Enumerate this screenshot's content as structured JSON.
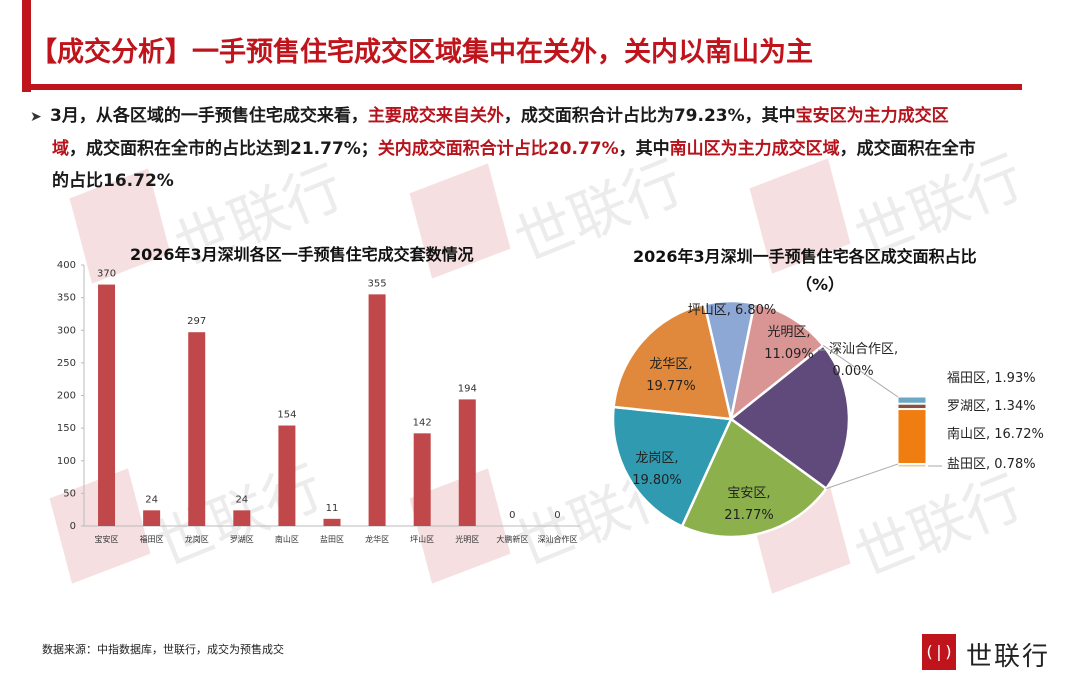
{
  "header": {
    "title": "【成交分析】一手预售住宅成交区域集中在关外，关内以南山为主",
    "accent_color": "#c0141c"
  },
  "summary": {
    "bullet_icon": "arrow-right-icon",
    "segments": [
      {
        "text": "3月，从各区域的一手预售住宅成交来看，",
        "highlight": false
      },
      {
        "text": "主要成交来自关外",
        "highlight": true
      },
      {
        "text": "，成交面积合计占比为79.23%，其中",
        "highlight": false
      },
      {
        "text": "宝安区为主力成交区域",
        "highlight": true
      },
      {
        "text": "，成交面积在全市的占比达到21.77%；",
        "highlight": false
      },
      {
        "text": "关内成交面积合计占比20.77%",
        "highlight": true
      },
      {
        "text": "，其中",
        "highlight": false
      },
      {
        "text": "南山区为主力成交区域",
        "highlight": true
      },
      {
        "text": "，成交面积在全市的占比16.72%",
        "highlight": false
      }
    ],
    "line1_a": "3月，从各区域的一手预售住宅成交来看，",
    "line1_b": "主要成交来自关外",
    "line1_c": "，成交面积合计占比为79.23%，其中",
    "line1_d": "宝安区为主力成交区",
    "line2_a": "域",
    "line2_b": "，成交面积在全市的占比达到21.77%；",
    "line2_c": "关内成交面积合计占比20.77%",
    "line2_d": "，其中",
    "line2_e": "南山区为主力成交区域",
    "line2_f": "，成交面积在全市",
    "line3_a": "的占比16.72%"
  },
  "watermark": {
    "text": "世联行"
  },
  "chart_data": [
    {
      "type": "bar",
      "title": "2026年3月深圳各区一手预售住宅成交套数情况",
      "categories": [
        "宝安区",
        "福田区",
        "龙岗区",
        "罗湖区",
        "南山区",
        "盐田区",
        "龙华区",
        "坪山区",
        "光明区",
        "大鹏新区",
        "深汕合作区"
      ],
      "values": [
        370,
        24,
        297,
        24,
        154,
        11,
        355,
        142,
        194,
        0,
        0
      ],
      "xlabel": "",
      "ylabel": "",
      "ylim": [
        0,
        400
      ],
      "yticks": [
        0,
        50,
        100,
        150,
        200,
        250,
        300,
        350,
        400
      ],
      "grid": false,
      "legend": null,
      "bar_color": "#c0474a",
      "data_labels": true
    },
    {
      "type": "pie",
      "title": "2026年3月深圳一手预售住宅各区成交面积占比（%）",
      "title_line1": "2026年3月深圳一手预售住宅各区成交面积占比",
      "title_line2": "（%）",
      "slices": [
        {
          "label": "坪山区",
          "value": 6.8,
          "display": "坪山区, 6.80%",
          "color": "#8ea8d6"
        },
        {
          "label": "光明区",
          "value": 11.09,
          "display_l1": "光明区,",
          "display_l2": "11.09%",
          "color": "#d99594"
        },
        {
          "label": "深汕合作区",
          "value": 0.0,
          "display_l1": "深汕合作区,",
          "display_l2": "0.00%",
          "color": "#f0a050"
        },
        {
          "label": "关内(福田/罗湖/南山/盐田)",
          "value": 20.77,
          "color": "#604a7b"
        },
        {
          "label": "宝安区",
          "value": 21.77,
          "display_l1": "宝安区,",
          "display_l2": "21.77%",
          "color": "#8bb04c"
        },
        {
          "label": "龙岗区",
          "value": 19.8,
          "display_l1": "龙岗区,",
          "display_l2": "19.80%",
          "color": "#2f9ab0"
        },
        {
          "label": "龙华区",
          "value": 19.77,
          "display_l1": "龙华区,",
          "display_l2": "19.77%",
          "color": "#e0893c"
        }
      ],
      "breakout": {
        "type": "stacked-bar",
        "items": [
          {
            "label": "福田区",
            "value": 1.93,
            "display": "福田区, 1.93%",
            "color": "#6aa8c4"
          },
          {
            "label": "罗湖区",
            "value": 1.34,
            "display": "罗湖区, 1.34%",
            "color": "#8a5040"
          },
          {
            "label": "南山区",
            "value": 16.72,
            "display": "南山区, 16.72%",
            "color": "#f07d10"
          },
          {
            "label": "盐田区",
            "value": 0.78,
            "display": "盐田区, 0.78%",
            "color": "#f7c890"
          }
        ]
      }
    }
  ],
  "footer": {
    "source": "数据来源：中指数据库，世联行，成交为预售成交",
    "logo_text": "世联行",
    "logo_icon": "shilianhang-logo-icon"
  }
}
